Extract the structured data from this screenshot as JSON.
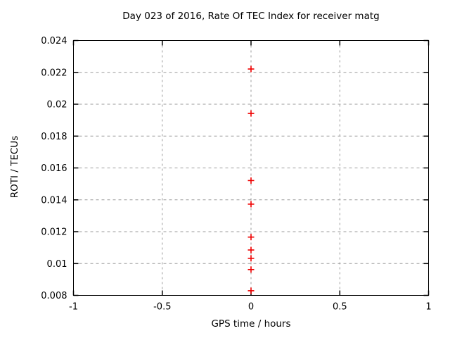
{
  "chart_data": {
    "type": "scatter",
    "title": "Day 023 of 2016, Rate Of TEC Index for receiver matg",
    "xlabel": "GPS time / hours",
    "ylabel": "ROTI / TECUs",
    "xlim": [
      -1,
      1
    ],
    "ylim": [
      0.008,
      0.024
    ],
    "xticks": [
      -1,
      -0.5,
      0,
      0.5,
      1
    ],
    "xtick_labels": [
      "-1",
      "-0.5",
      "0",
      "0.5",
      "1"
    ],
    "yticks": [
      0.008,
      0.01,
      0.012,
      0.014,
      0.016,
      0.018,
      0.02,
      0.022,
      0.024
    ],
    "ytick_labels": [
      "0.008",
      "0.01",
      "0.012",
      "0.014",
      "0.016",
      "0.018",
      "0.02",
      "0.022",
      "0.024"
    ],
    "grid": true,
    "legend_position": "none",
    "series": [
      {
        "name": "ROTI",
        "marker": "plus",
        "color": "#ee0000",
        "points": [
          {
            "x": 0,
            "y": 0.02221
          },
          {
            "x": 0,
            "y": 0.01942
          },
          {
            "x": 0,
            "y": 0.01521
          },
          {
            "x": 0,
            "y": 0.01373
          },
          {
            "x": 0,
            "y": 0.01166
          },
          {
            "x": 0,
            "y": 0.01085
          },
          {
            "x": 0,
            "y": 0.01033
          },
          {
            "x": 0,
            "y": 0.00962
          },
          {
            "x": 0,
            "y": 0.00829
          }
        ]
      }
    ],
    "colors": {
      "background": "#ffffff",
      "axis": "#000000",
      "grid": "#9b9b9b",
      "marker": "#ee0000",
      "text": "#000000"
    }
  }
}
